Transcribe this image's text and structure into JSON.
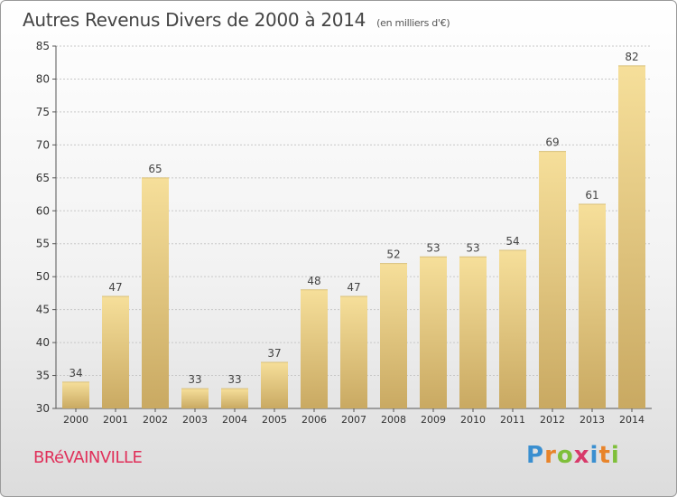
{
  "header": {
    "title": "Autres Revenus Divers de 2000 à 2014",
    "subtitle": "(en milliers d'€)"
  },
  "footer": {
    "commune": "BRéVAINVILLE",
    "logo_letters": [
      "P",
      "r",
      "o",
      "x",
      "i",
      "t",
      "i"
    ],
    "logo_colors": [
      "#3a8fd0",
      "#e8842a",
      "#7fbf3a",
      "#d83a6a",
      "#3a8fd0",
      "#e8842a",
      "#7fbf3a"
    ]
  },
  "colors": {
    "bar_light": "#f6df9a",
    "bar_dark": "#c9a962",
    "grid": "#c8c8c8",
    "axis_text": "#333333"
  },
  "chart_data": {
    "type": "bar",
    "title": "Autres Revenus Divers de 2000 à 2014",
    "xlabel": "",
    "ylabel": "",
    "categories": [
      "2000",
      "2001",
      "2002",
      "2003",
      "2004",
      "2005",
      "2006",
      "2007",
      "2008",
      "2009",
      "2010",
      "2011",
      "2012",
      "2013",
      "2014"
    ],
    "values": [
      34,
      47,
      65,
      33,
      33,
      37,
      48,
      47,
      52,
      53,
      53,
      54,
      69,
      61,
      82
    ],
    "ylim": [
      30,
      85
    ],
    "yticks": [
      30,
      35,
      40,
      45,
      50,
      55,
      60,
      65,
      70,
      75,
      80,
      85
    ],
    "grid": true,
    "legend": "none"
  }
}
